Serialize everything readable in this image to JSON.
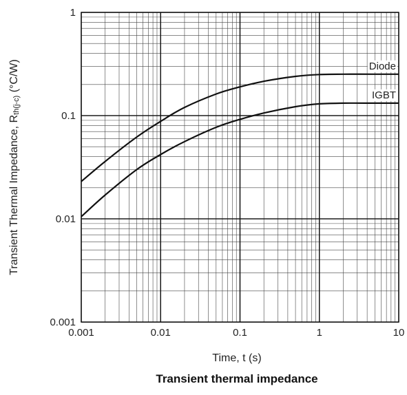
{
  "chart_data": {
    "type": "line",
    "x_scale": "log",
    "y_scale": "log",
    "xlim": [
      0.001,
      10
    ],
    "ylim": [
      0.001,
      1
    ],
    "grid": true,
    "x_ticks": [
      "0.001",
      "0.01",
      "0.1",
      "1",
      "10"
    ],
    "y_ticks": [
      "0.001",
      "0.01",
      "0.1",
      "1"
    ],
    "xlabel": "Time, t (s)",
    "ylabel_main": "Transient Thermal Impedance, R",
    "ylabel_sub": "th(j-c)",
    "ylabel_unit": " (°C/W)",
    "caption": "Transient thermal impedance",
    "series": [
      {
        "name": "Diode",
        "x": [
          0.001,
          0.002,
          0.005,
          0.01,
          0.02,
          0.05,
          0.1,
          0.2,
          0.5,
          1,
          2,
          5,
          10
        ],
        "y": [
          0.023,
          0.036,
          0.062,
          0.088,
          0.12,
          0.162,
          0.19,
          0.215,
          0.24,
          0.25,
          0.252,
          0.252,
          0.252
        ]
      },
      {
        "name": "IGBT",
        "x": [
          0.001,
          0.002,
          0.005,
          0.01,
          0.02,
          0.05,
          0.1,
          0.2,
          0.5,
          1,
          2,
          5,
          10
        ],
        "y": [
          0.0105,
          0.017,
          0.03,
          0.042,
          0.056,
          0.077,
          0.092,
          0.106,
          0.122,
          0.13,
          0.132,
          0.132,
          0.132
        ]
      }
    ]
  }
}
